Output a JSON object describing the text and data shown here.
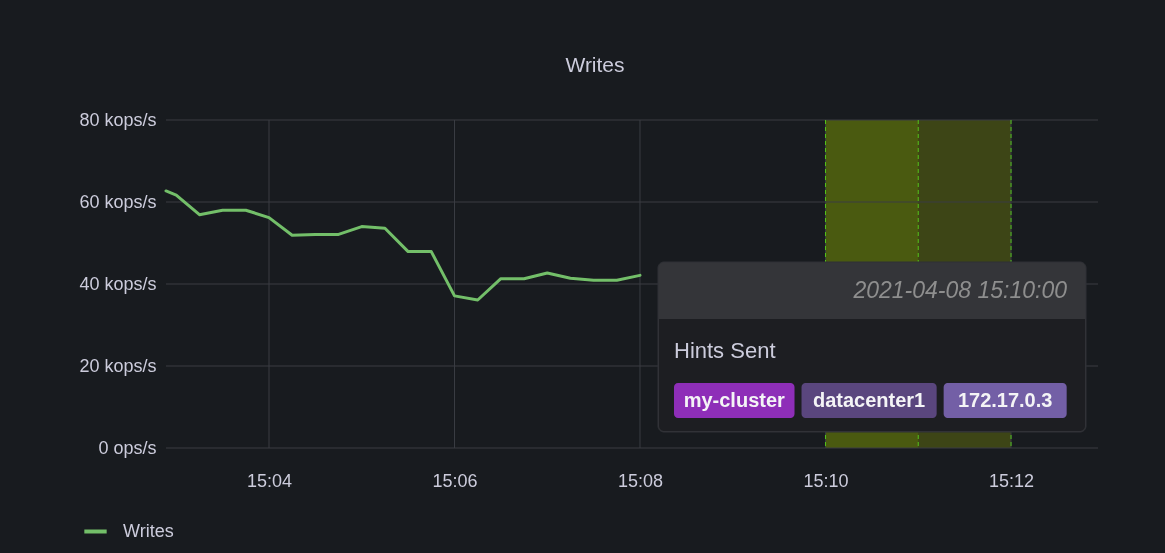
{
  "chart_data": {
    "type": "line",
    "title": "Writes",
    "x": [
      15.04816,
      15.05,
      15.05417,
      15.05833,
      15.0625,
      15.06667,
      15.07083,
      15.075,
      15.07917,
      15.08333,
      15.0875,
      15.09167,
      15.09583,
      15.1,
      15.10417,
      15.10833,
      15.1125,
      15.11667,
      15.12083,
      15.125,
      15.12917,
      15.13333
    ],
    "series": [
      {
        "name": "Writes",
        "color": "#73bf69",
        "values": [
          62.7,
          61.7,
          56.9,
          58.0,
          58.0,
          56.2,
          51.9,
          52.1,
          52.1,
          54.0,
          53.6,
          47.9,
          47.9,
          37.1,
          36.1,
          41.3,
          41.3,
          42.7,
          41.4,
          40.9,
          40.9,
          42.1
        ]
      }
    ],
    "xlim": [
      15.04816,
      15.21563
    ],
    "xticks": [
      {
        "value": 15.06667,
        "label": "15:04"
      },
      {
        "value": 15.1,
        "label": "15:06"
      },
      {
        "value": 15.13333,
        "label": "15:08"
      },
      {
        "value": 15.16667,
        "label": "15:10"
      },
      {
        "value": 15.2,
        "label": "15:12"
      }
    ],
    "ylim": [
      0,
      80
    ],
    "yticks": [
      {
        "value": 0,
        "label": "0 ops/s"
      },
      {
        "value": 20,
        "label": "20 kops/s"
      },
      {
        "value": 40,
        "label": "40 kops/s"
      },
      {
        "value": 60,
        "label": "60 kops/s"
      },
      {
        "value": 80,
        "label": "80 kops/s"
      }
    ],
    "grid": true,
    "legend": "bottom",
    "bands": [
      {
        "axis": "x",
        "from": 15.16667,
        "to": 15.2,
        "color": "#3d4516"
      },
      {
        "axis": "x",
        "from": 15.16667,
        "to": 15.18333,
        "color": "#4a5a10"
      }
    ],
    "annotations": [
      "2021-04-08 15:10:00",
      "Hints Sent",
      "my-cluster",
      "datacenter1",
      "172.17.0.3"
    ]
  }
}
